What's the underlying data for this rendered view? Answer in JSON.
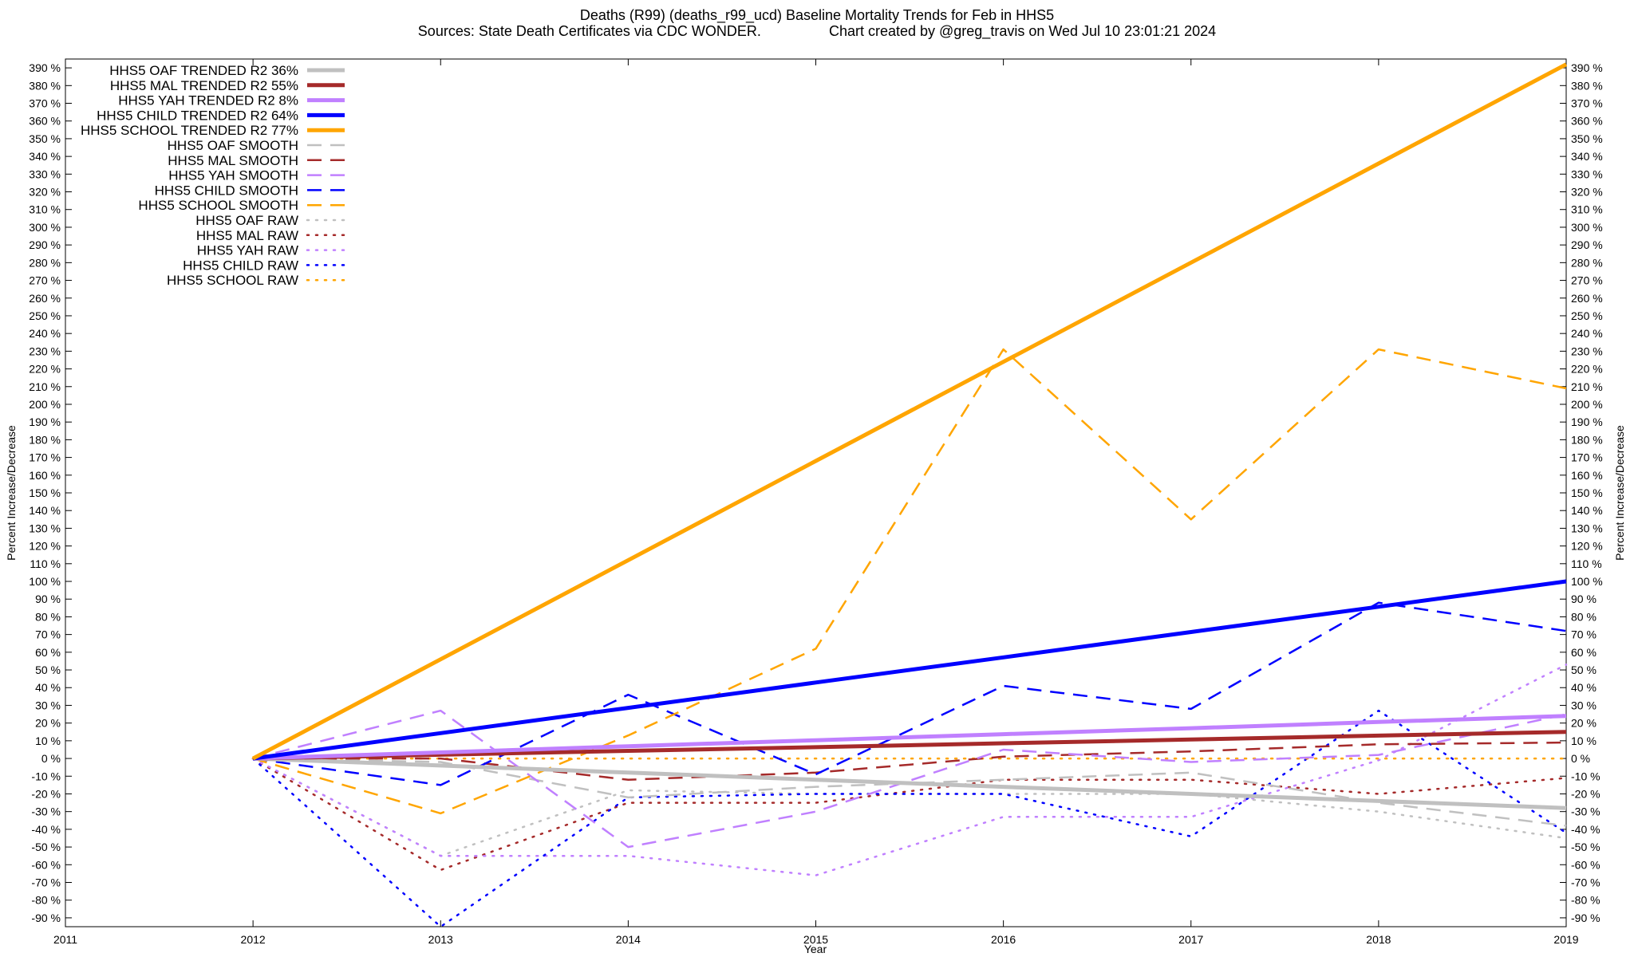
{
  "title_line1": "Deaths (R99) (deaths_r99_ucd)  Baseline Mortality Trends for Feb in HHS5",
  "title_line2": "Sources: State Death Certificates via CDC WONDER.                 Chart created by @greg_travis on Wed Jul 10 23:01:21 2024",
  "chart_data": {
    "type": "line",
    "title": "Deaths (R99) (deaths_r99_ucd)  Baseline Mortality Trends for Feb in HHS5",
    "subtitle": "Sources: State Death Certificates via CDC WONDER.                 Chart created by @greg_travis on Wed Jul 10 23:01:21 2024",
    "xlabel": "Year",
    "ylabel": "Percent Increase/Decrease",
    "y2label": "Percent Increase/Decrease",
    "xlim": [
      2011,
      2019
    ],
    "ylim": [
      -95,
      395
    ],
    "x_ticks": [
      "2011",
      "2012",
      "2013",
      "2014",
      "2015",
      "2016",
      "2017",
      "2018",
      "2019"
    ],
    "y_ticks": [
      -90,
      -80,
      -70,
      -60,
      -50,
      -40,
      -30,
      -20,
      -10,
      0,
      10,
      20,
      30,
      40,
      50,
      60,
      70,
      80,
      90,
      100,
      110,
      120,
      130,
      140,
      150,
      160,
      170,
      180,
      190,
      200,
      210,
      220,
      230,
      240,
      250,
      260,
      270,
      280,
      290,
      300,
      310,
      320,
      330,
      340,
      350,
      360,
      370,
      380,
      390
    ],
    "y_tick_suffix": " %",
    "grid": false,
    "legend_position": "top-left",
    "x": [
      2012,
      2013,
      2014,
      2015,
      2016,
      2017,
      2018,
      2019
    ],
    "series": [
      {
        "name": "HHS5 OAF TRENDED R2  36%",
        "style": "solid",
        "color": "#c0c0c0",
        "values": [
          0,
          -4,
          -8,
          -12,
          -16,
          -20,
          -24,
          -28
        ]
      },
      {
        "name": "HHS5 MAL TRENDED R2  55%",
        "style": "solid",
        "color": "#a52a2a",
        "values": [
          0,
          2.1,
          4.3,
          6.4,
          8.6,
          10.7,
          12.9,
          15
        ]
      },
      {
        "name": "HHS5 YAH TRENDED R2   8%",
        "style": "solid",
        "color": "#c080ff",
        "values": [
          0,
          3.4,
          6.9,
          10.3,
          13.7,
          17.1,
          20.6,
          24
        ]
      },
      {
        "name": "HHS5 CHILD TRENDED R2  64%",
        "style": "solid",
        "color": "#0000ff",
        "values": [
          0,
          14.3,
          28.6,
          42.9,
          57.1,
          71.4,
          85.7,
          100
        ]
      },
      {
        "name": "HHS5 SCHOOL TRENDED R2  77%",
        "style": "solid",
        "color": "#ffa500",
        "values": [
          0,
          56,
          112,
          168,
          224,
          280,
          336,
          392
        ]
      },
      {
        "name": "HHS5 OAF SMOOTH",
        "style": "dashed",
        "color": "#c0c0c0",
        "values": [
          0,
          -2,
          -22,
          -16,
          -12,
          -8,
          -25,
          -38
        ]
      },
      {
        "name": "HHS5 MAL SMOOTH",
        "style": "dashed",
        "color": "#a52a2a",
        "values": [
          0,
          0,
          -12,
          -8,
          1,
          4,
          8,
          9
        ]
      },
      {
        "name": "HHS5 YAH SMOOTH",
        "style": "dashed",
        "color": "#c080ff",
        "values": [
          0,
          27,
          -50,
          -30,
          5,
          -2,
          2,
          25
        ]
      },
      {
        "name": "HHS5 CHILD SMOOTH",
        "style": "dashed",
        "color": "#0000ff",
        "values": [
          0,
          -15,
          36,
          -9,
          41,
          28,
          88,
          72
        ]
      },
      {
        "name": "HHS5 SCHOOL SMOOTH",
        "style": "dashed",
        "color": "#ffa500",
        "values": [
          0,
          -31,
          13,
          62,
          231,
          135,
          231,
          209
        ]
      },
      {
        "name": "HHS5 OAF RAW",
        "style": "dotted",
        "color": "#c0c0c0",
        "values": [
          0,
          -55,
          -18,
          -20,
          -20,
          -20,
          -30,
          -45
        ]
      },
      {
        "name": "HHS5 MAL RAW",
        "style": "dotted",
        "color": "#a52a2a",
        "values": [
          0,
          -63,
          -25,
          -25,
          -12,
          -12,
          -20,
          -11
        ]
      },
      {
        "name": "HHS5 YAH RAW",
        "style": "dotted",
        "color": "#c080ff",
        "values": [
          0,
          -55,
          -55,
          -66,
          -33,
          -33,
          -1,
          53
        ]
      },
      {
        "name": "HHS5 CHILD RAW",
        "style": "dotted",
        "color": "#0000ff",
        "values": [
          0,
          -95,
          -22,
          -20,
          -20,
          -44,
          27,
          -42
        ]
      },
      {
        "name": "HHS5 SCHOOL RAW",
        "style": "dotted",
        "color": "#ffa500",
        "values": [
          0,
          0,
          0,
          0,
          0,
          0,
          0,
          0
        ]
      }
    ]
  }
}
